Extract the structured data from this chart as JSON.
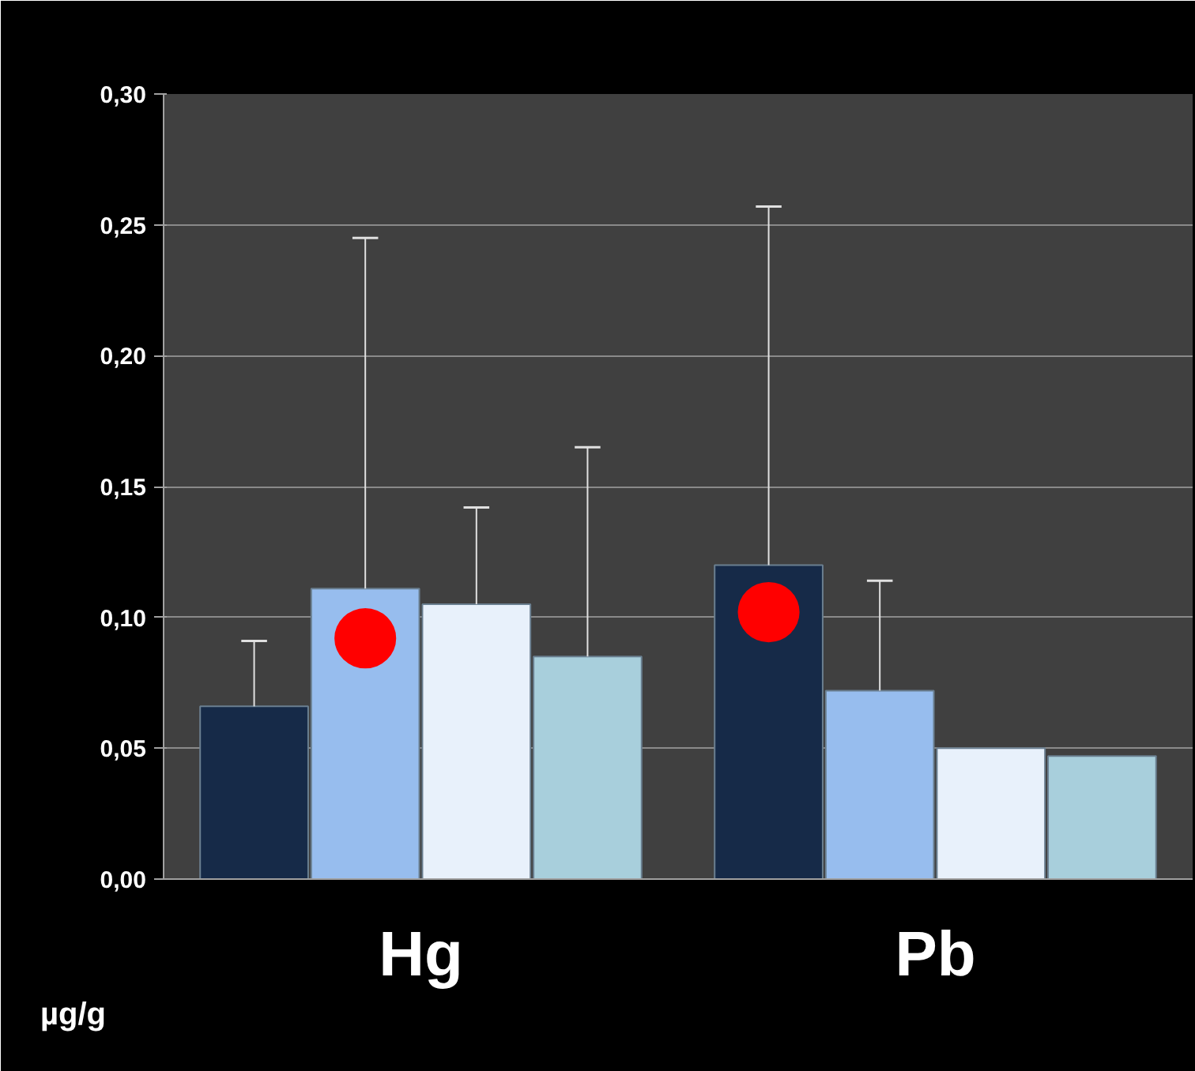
{
  "chart_data": {
    "type": "bar",
    "ylabel": "µg/g",
    "categories": [
      "Hg",
      "Pb"
    ],
    "series": [
      {
        "color": "#162a48",
        "values": [
          0.066,
          0.12
        ],
        "errors": [
          [
            0.066,
            0.091
          ],
          [
            0.12,
            0.257
          ]
        ]
      },
      {
        "color": "#97bdee",
        "values": [
          0.111,
          0.072
        ],
        "errors": [
          [
            0.111,
            0.245
          ],
          [
            0.072,
            0.114
          ]
        ]
      },
      {
        "color": "#e8f1fb",
        "values": [
          0.105,
          0.05
        ],
        "errors": [
          [
            0.105,
            0.142
          ],
          null
        ]
      },
      {
        "color": "#a8cfdc",
        "values": [
          0.085,
          0.047
        ],
        "errors": [
          [
            0.085,
            0.165
          ],
          null
        ]
      },
      {
        "type": "scatter",
        "color": "#ff0000",
        "values": [
          null,
          0.102
        ]
      },
      {
        "type": "scatter",
        "color": "#ff0000",
        "values": [
          0.092,
          null
        ]
      }
    ],
    "ylim": [
      0,
      0.3
    ],
    "yticks": [
      {
        "value": 0,
        "label": "0,00"
      },
      {
        "value": 0.05,
        "label": "0,05"
      },
      {
        "value": 0.1,
        "label": "0,10"
      },
      {
        "value": 0.15,
        "label": "0,15"
      },
      {
        "value": 0.2,
        "label": "0,20"
      },
      {
        "value": 0.25,
        "label": "0,25"
      },
      {
        "value": 0.3,
        "label": "0,30"
      }
    ],
    "grid": "y"
  }
}
